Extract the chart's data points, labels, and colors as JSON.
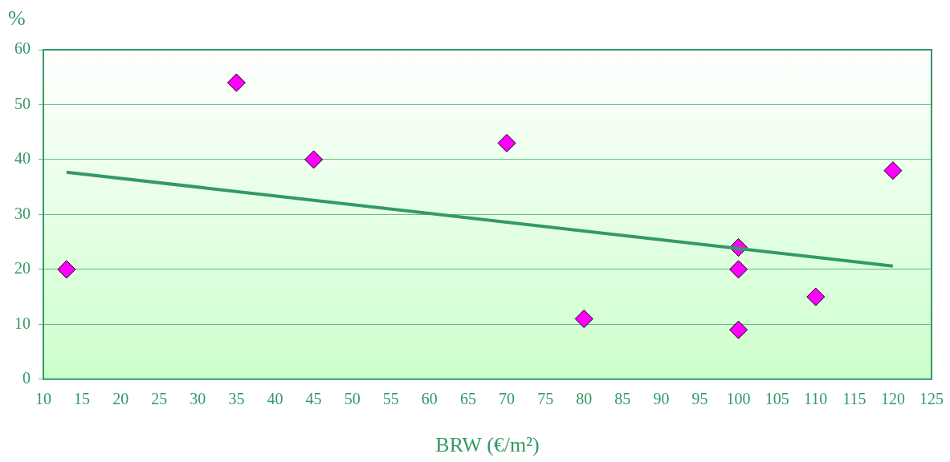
{
  "chart_data": {
    "type": "scatter",
    "ylabel": "%",
    "xlabel": "BRW (€/m²)",
    "xlim": [
      10,
      125
    ],
    "xticks": [
      10,
      15,
      20,
      25,
      30,
      35,
      40,
      45,
      50,
      55,
      60,
      65,
      70,
      75,
      80,
      85,
      90,
      95,
      100,
      105,
      110,
      115,
      120,
      125
    ],
    "ylim": [
      0,
      60
    ],
    "yticks": [
      0,
      10,
      20,
      30,
      40,
      50,
      60
    ],
    "grid": "y",
    "legend": false,
    "series": [
      {
        "marker": "diamond",
        "color": "#ff00ff",
        "x": [
          13,
          35,
          45,
          70,
          80,
          100,
          100,
          100,
          110,
          120
        ],
        "values": [
          20,
          54,
          40,
          43,
          11,
          24,
          20,
          9,
          15,
          38
        ]
      },
      {
        "type": "line",
        "color": "#339966",
        "x": [
          13,
          120
        ],
        "values": [
          37.7,
          20.6
        ]
      }
    ]
  }
}
